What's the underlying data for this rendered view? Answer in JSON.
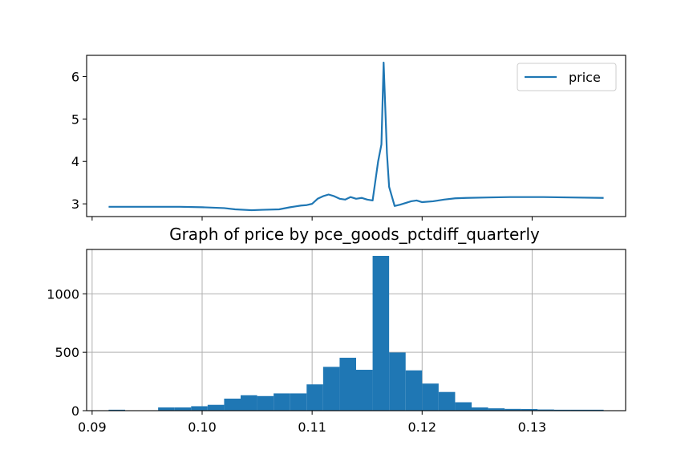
{
  "chart_data": [
    {
      "type": "line",
      "title": "",
      "xlabel": "",
      "ylabel": "",
      "xlim": [
        0.0895,
        0.1385
      ],
      "ylim": [
        2.7,
        6.5
      ],
      "x_ticks": [
        0.09,
        0.1,
        0.11,
        0.12,
        0.13
      ],
      "x_tick_labels_shown": false,
      "y_ticks": [
        3,
        4,
        5,
        6
      ],
      "y_tick_labels": [
        "3",
        "4",
        "5",
        "6"
      ],
      "grid": false,
      "legend": "top-right",
      "color": "#1f77b4",
      "series": [
        {
          "name": "price",
          "x": [
            0.0915,
            0.095,
            0.098,
            0.1,
            0.102,
            0.103,
            0.1045,
            0.1055,
            0.107,
            0.108,
            0.1085,
            0.109,
            0.1095,
            0.11,
            0.1105,
            0.111,
            0.1115,
            0.112,
            0.1125,
            0.113,
            0.1135,
            0.114,
            0.1145,
            0.115,
            0.1155,
            0.116,
            0.1163,
            0.1165,
            0.1168,
            0.117,
            0.1175,
            0.118,
            0.1185,
            0.119,
            0.1195,
            0.12,
            0.121,
            0.122,
            0.123,
            0.124,
            0.126,
            0.128,
            0.131,
            0.1335,
            0.1365
          ],
          "y": [
            2.93,
            2.93,
            2.93,
            2.92,
            2.9,
            2.87,
            2.85,
            2.86,
            2.87,
            2.92,
            2.94,
            2.96,
            2.97,
            3.0,
            3.12,
            3.18,
            3.22,
            3.18,
            3.12,
            3.1,
            3.16,
            3.12,
            3.14,
            3.1,
            3.08,
            4.0,
            4.4,
            6.33,
            4.2,
            3.4,
            2.95,
            2.98,
            3.02,
            3.06,
            3.08,
            3.04,
            3.06,
            3.1,
            3.13,
            3.14,
            3.15,
            3.16,
            3.16,
            3.15,
            3.14
          ]
        }
      ]
    },
    {
      "type": "bar",
      "title": "Graph of price by pce_goods_pctdiff_quarterly",
      "xlabel": "",
      "ylabel": "",
      "xlim": [
        0.0895,
        0.1385
      ],
      "ylim": [
        0,
        1380
      ],
      "x_ticks": [
        0.09,
        0.1,
        0.11,
        0.12,
        0.13
      ],
      "x_tick_labels": [
        "0.09",
        "0.10",
        "0.11",
        "0.12",
        "0.13"
      ],
      "y_ticks": [
        0,
        500,
        1000
      ],
      "y_tick_labels": [
        "0",
        "500",
        "1000"
      ],
      "grid": true,
      "color": "#1f77b4",
      "bin_edges": [
        0.0915,
        0.093,
        0.0945,
        0.096,
        0.0975,
        0.099,
        0.1005,
        0.102,
        0.1035,
        0.105,
        0.1065,
        0.108,
        0.1095,
        0.111,
        0.1125,
        0.114,
        0.1155,
        0.117,
        0.1185,
        0.12,
        0.1215,
        0.123,
        0.1245,
        0.126,
        0.1275,
        0.129,
        0.1305,
        0.132,
        0.1335,
        0.135,
        0.1365
      ],
      "values": [
        8,
        0,
        0,
        28,
        28,
        38,
        50,
        103,
        132,
        125,
        148,
        148,
        225,
        375,
        453,
        350,
        1325,
        498,
        345,
        232,
        160,
        72,
        28,
        20,
        15,
        14,
        10,
        8,
        8,
        8
      ]
    }
  ]
}
